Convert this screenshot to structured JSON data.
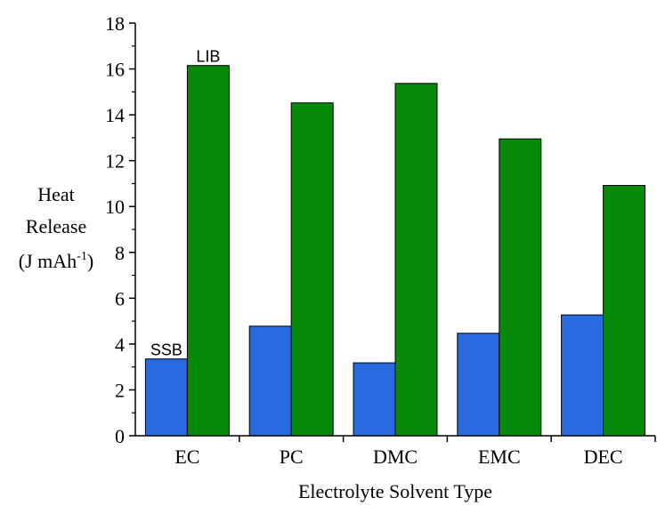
{
  "colors": {
    "ssb": "#2a6ae0",
    "lib": "#078a0a",
    "axis": "#000000",
    "bar_stroke": "#000000"
  },
  "chart_data": {
    "type": "bar",
    "categories": [
      "EC",
      "PC",
      "DMC",
      "EMC",
      "DEC"
    ],
    "series": [
      {
        "name": "SSB",
        "values": [
          3.35,
          4.78,
          3.18,
          4.47,
          5.27
        ]
      },
      {
        "name": "LIB",
        "values": [
          16.15,
          14.52,
          15.37,
          12.95,
          10.92
        ]
      }
    ],
    "title": "",
    "xlabel": "Electrolyte Solvent Type",
    "ylabel_lines": [
      "Heat",
      "Release",
      "(J mAh",
      "-1",
      ")"
    ],
    "ylim": [
      0,
      18
    ],
    "yticks": [
      0,
      2,
      4,
      6,
      8,
      10,
      12,
      14,
      16,
      18
    ],
    "grid": false,
    "legend": "none (series labeled directly above the first bars)"
  }
}
